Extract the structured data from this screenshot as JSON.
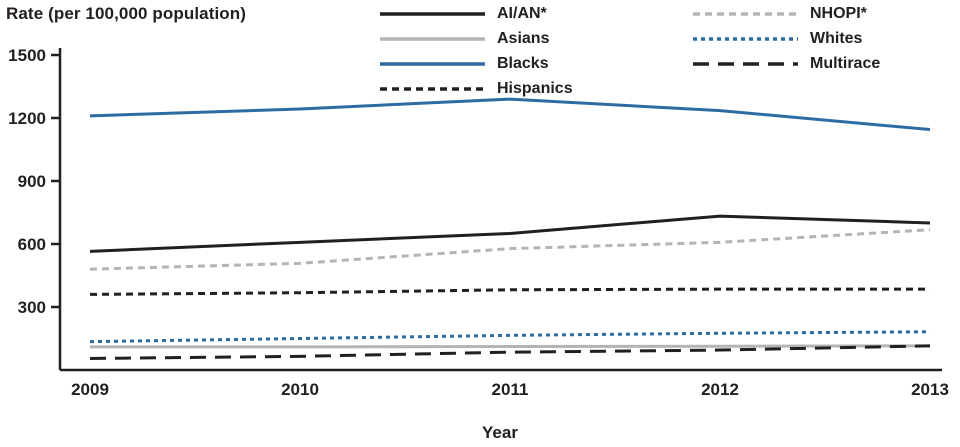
{
  "title": "Rate (per 100,000 population)",
  "xlabel": "Year",
  "colors": {
    "axis": "#231f20",
    "black": "#231f20",
    "blue": "#2d6ca2",
    "gray": "#b2b4b6"
  },
  "legend": {
    "column1": [
      "AI/AN*",
      "Asians",
      "Blacks",
      "Hispanics"
    ],
    "column2": [
      "NHOPI*",
      "Whites",
      "Multirace"
    ]
  },
  "chart_data": {
    "type": "line",
    "title": "Rate (per 100,000 population)",
    "xlabel": "Year",
    "ylabel": "Rate (per 100,000 population)",
    "x": [
      2009,
      2010,
      2011,
      2012,
      2013
    ],
    "ylim": [
      0,
      1500
    ],
    "yticks": [
      300,
      600,
      900,
      1200,
      1500
    ],
    "grid": false,
    "legend_position": "top",
    "series": [
      {
        "name": "AI/AN*",
        "color": "#231f20",
        "dash": "solid",
        "values": [
          565,
          608,
          650,
          733,
          700
        ]
      },
      {
        "name": "Asians",
        "color": "#b2b4b6",
        "dash": "solid",
        "values": [
          110,
          110,
          112,
          113,
          115
        ]
      },
      {
        "name": "Blacks",
        "color": "#2d6ca2",
        "dash": "solid",
        "values": [
          1210,
          1243,
          1290,
          1235,
          1145
        ]
      },
      {
        "name": "Hispanics",
        "color": "#231f20",
        "dash": "dashed",
        "values": [
          360,
          368,
          382,
          385,
          385
        ]
      },
      {
        "name": "NHOPI*",
        "color": "#b2b4b6",
        "dash": "dashed",
        "values": [
          480,
          508,
          578,
          608,
          668
        ]
      },
      {
        "name": "Whites",
        "color": "#2d6ca2",
        "dash": "dotted",
        "values": [
          135,
          150,
          165,
          175,
          182
        ]
      },
      {
        "name": "Multirace",
        "color": "#231f20",
        "dash": "longdash",
        "values": [
          55,
          65,
          85,
          95,
          115
        ]
      }
    ]
  }
}
